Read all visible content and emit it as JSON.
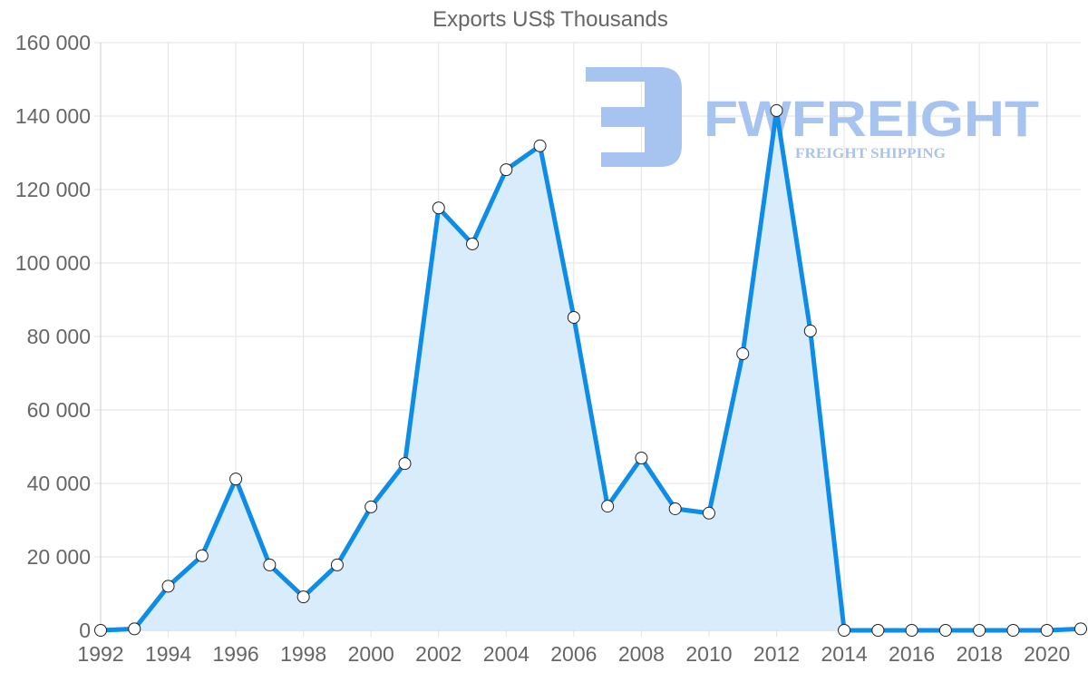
{
  "chart_data": {
    "type": "line",
    "title": "Exports US$ Thousands",
    "xlabel": "",
    "ylabel": "",
    "ylim": [
      0,
      160000
    ],
    "y_ticks": [
      "0",
      "20 000",
      "40 000",
      "60 000",
      "80 000",
      "100 000",
      "120 000",
      "140 000",
      "160 000"
    ],
    "x_tick_labels": [
      "1992",
      "1994",
      "1996",
      "1998",
      "2000",
      "2002",
      "2004",
      "2006",
      "2008",
      "2010",
      "2012",
      "2014",
      "2016",
      "2018",
      "2020"
    ],
    "grid": true,
    "legend": "none",
    "fill": true,
    "x": [
      1992,
      1993,
      1994,
      1995,
      1996,
      1997,
      1998,
      1999,
      2000,
      2001,
      2002,
      2003,
      2004,
      2005,
      2006,
      2007,
      2008,
      2009,
      2010,
      2011,
      2012,
      2013,
      2014,
      2015,
      2016,
      2017,
      2018,
      2019,
      2020,
      2021
    ],
    "series": [
      {
        "name": "Exports US$ Thousands",
        "color": "#0d8ce8",
        "fill_color": "#d7ebfc",
        "values": [
          0,
          400,
          12000,
          20300,
          41200,
          17800,
          9100,
          17800,
          33600,
          45400,
          115000,
          105200,
          125400,
          131900,
          85200,
          33800,
          46900,
          33100,
          31900,
          75300,
          141500,
          81500,
          0,
          0,
          0,
          0,
          0,
          0,
          0,
          400
        ]
      }
    ]
  },
  "watermark": {
    "brand": "FWFREIGHT",
    "tagline": "FREIGHT SHIPPING",
    "color": "#a7c3ef"
  }
}
